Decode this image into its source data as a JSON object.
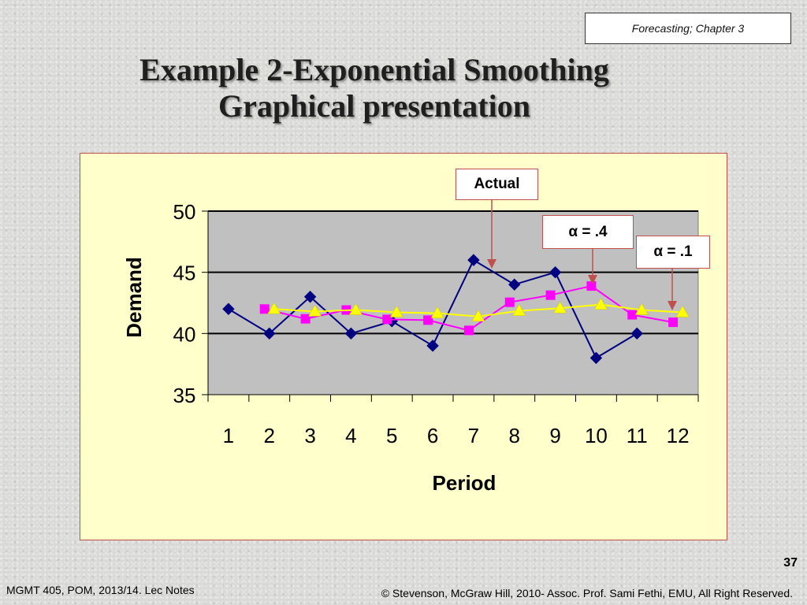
{
  "header": {
    "chapter_label": "Forecasting; Chapter 3"
  },
  "slide": {
    "title_line1": "Example 2-Exponential Smoothing",
    "title_line2": "Graphical presentation",
    "page_number": "37"
  },
  "footer": {
    "left": "MGMT 405, POM, 2013/14. Lec Notes",
    "right": "© Stevenson, McGraw Hill, 2010- Assoc. Prof. Sami Fethi, EMU, All Right Reserved."
  },
  "callouts": {
    "actual": "Actual",
    "alpha_04": "α = .4",
    "alpha_01": "α = .1"
  },
  "chart_data": {
    "type": "line",
    "x": [
      1,
      2,
      3,
      4,
      5,
      6,
      7,
      8,
      9,
      10,
      11,
      12
    ],
    "xlabel": "Period",
    "ylabel": "Demand",
    "ylim": [
      35,
      50
    ],
    "yticks": [
      35,
      40,
      45,
      50
    ],
    "grid": true,
    "series": [
      {
        "name": "Actual",
        "color": "#000080",
        "marker": "diamond",
        "values": [
          42,
          40,
          43,
          40,
          41,
          39,
          46,
          44,
          45,
          38,
          40,
          null
        ]
      },
      {
        "name": "α = .4",
        "color": "#ff00ff",
        "marker": "square",
        "values": [
          null,
          42,
          41.2,
          41.92,
          41.152,
          41.091,
          40.255,
          42.553,
          43.132,
          43.879,
          41.527,
          40.916
        ]
      },
      {
        "name": "α = .1",
        "color": "#ffff00",
        "marker": "triangle",
        "values": [
          null,
          42,
          41.8,
          41.92,
          41.728,
          41.655,
          41.39,
          41.851,
          42.066,
          42.359,
          41.923,
          41.731
        ]
      }
    ]
  },
  "colors": {
    "plot_background": "#c0c0c0",
    "panel_background": "#ffffcc",
    "callout_border": "#c0504d"
  }
}
